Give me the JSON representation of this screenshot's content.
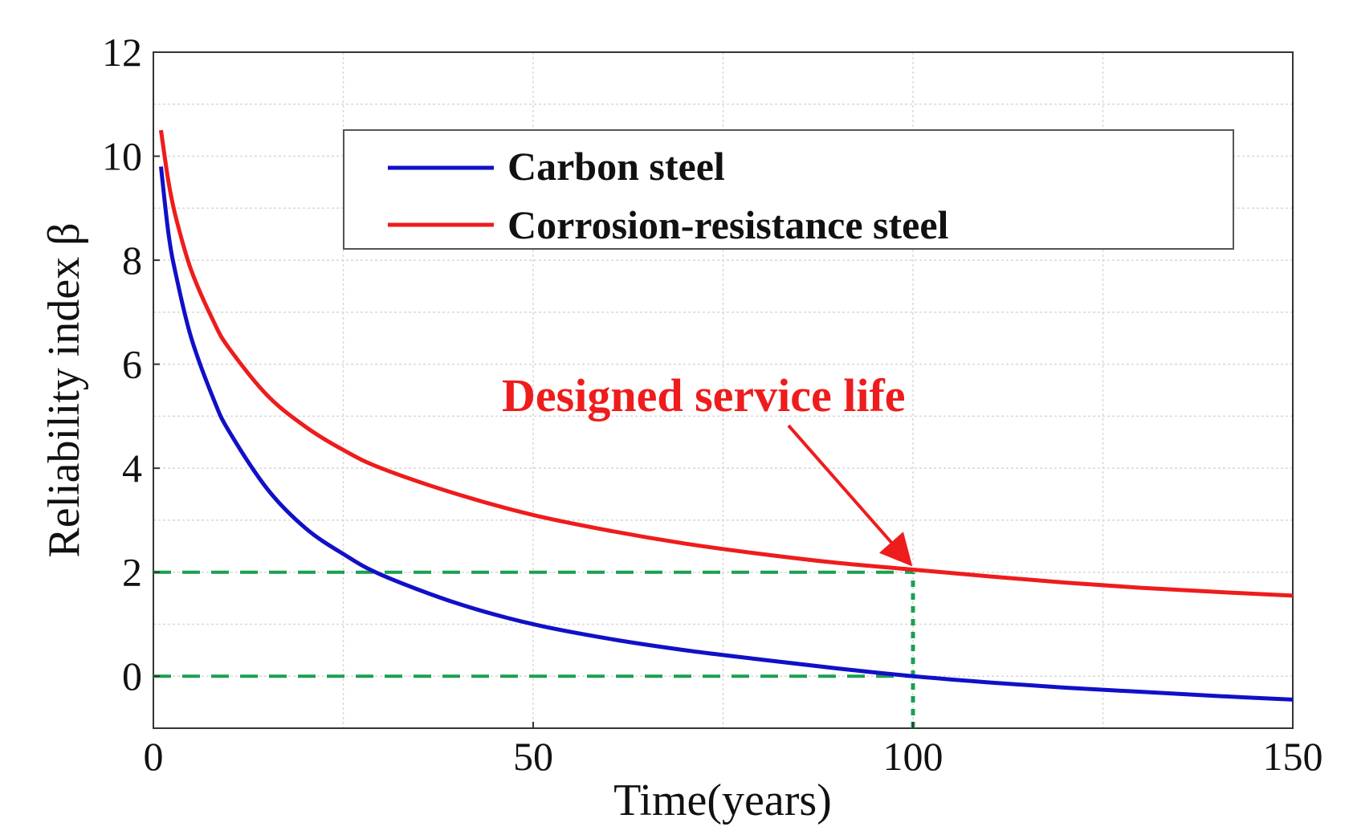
{
  "chart_data": {
    "type": "line",
    "title": "",
    "xlabel": "Time(years)",
    "ylabel": "Reliability index β",
    "xlim": [
      0,
      150
    ],
    "ylim": [
      -1,
      12
    ],
    "xticks": [
      0,
      50,
      100,
      150
    ],
    "yticks": [
      0,
      2,
      4,
      6,
      8,
      10,
      12
    ],
    "grid": true,
    "legend_position": "top-right",
    "series": [
      {
        "name": "Carbon steel",
        "color": "#1010c8",
        "x": [
          1,
          2,
          3,
          5,
          8,
          10,
          15,
          20,
          25,
          30,
          40,
          50,
          60,
          70,
          80,
          90,
          100,
          110,
          120,
          130,
          140,
          150
        ],
        "y": [
          9.8,
          8.5,
          7.7,
          6.5,
          5.3,
          4.7,
          3.6,
          2.85,
          2.35,
          1.95,
          1.4,
          1.0,
          0.72,
          0.5,
          0.32,
          0.15,
          0.0,
          -0.12,
          -0.22,
          -0.3,
          -0.38,
          -0.45
        ]
      },
      {
        "name": "Corrosion-resistance steel",
        "color": "#ee1c1c",
        "x": [
          1,
          2,
          3,
          5,
          8,
          10,
          15,
          20,
          25,
          30,
          40,
          50,
          60,
          70,
          80,
          90,
          100,
          110,
          120,
          130,
          140,
          150
        ],
        "y": [
          10.5,
          9.5,
          8.8,
          7.8,
          6.8,
          6.3,
          5.4,
          4.8,
          4.35,
          4.0,
          3.5,
          3.1,
          2.8,
          2.55,
          2.35,
          2.18,
          2.05,
          1.92,
          1.8,
          1.7,
          1.62,
          1.55
        ]
      }
    ],
    "reference_lines": [
      {
        "type": "horizontal",
        "y": 2,
        "x_from": 0,
        "x_to": 100,
        "color": "#1aa050"
      },
      {
        "type": "horizontal",
        "y": 0,
        "x_from": 0,
        "x_to": 100,
        "color": "#1aa050"
      },
      {
        "type": "vertical",
        "x": 100,
        "y_from": -1,
        "y_to": 2,
        "color": "#1aa050"
      }
    ],
    "annotation": {
      "text": "Designed service life",
      "color": "#ee1c1c",
      "points_to": {
        "x": 100,
        "y": 2.05
      }
    }
  }
}
